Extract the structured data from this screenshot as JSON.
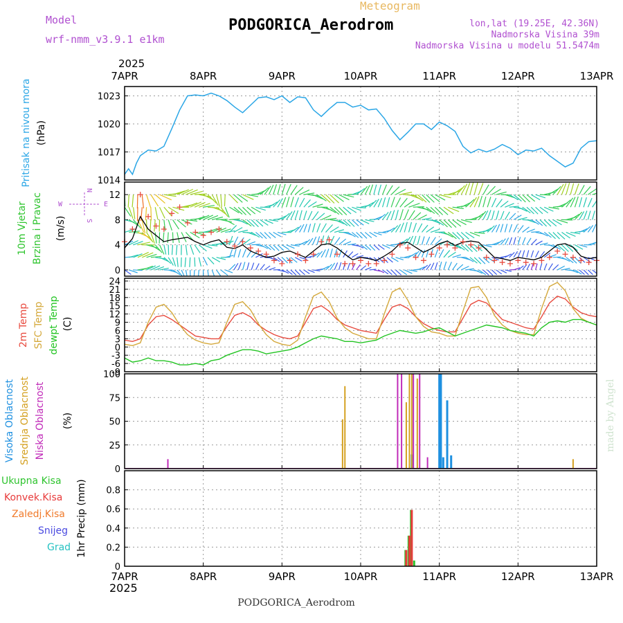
{
  "header": {
    "model_label": "Model",
    "model_name": "wrf-nmm_v3.9.1 e1km",
    "subtitle": "Meteogram",
    "station": "PODGORICA_Aerodrom",
    "coords": "lon,lat (19.25E, 42.36N)",
    "elevation": "Nadmorska Visina 39m",
    "model_elevation": "Nadmorska Visina u modelu 51.5474m",
    "footer_station": "PODGORICA_Aerodrom",
    "credit": "made by Angel"
  },
  "colors": {
    "pressure": "#2aa6e6",
    "temp2m": "#e84a3e",
    "sfc": "#d4a83a",
    "dewpt": "#22c422",
    "high_cloud": "#1e90e0",
    "mid_cloud": "#d4a020",
    "low_cloud": "#c02ab8",
    "total_precip": "#2ec42e",
    "conv_precip": "#e83a3a",
    "frz_precip": "#f07a2a",
    "snow": "#4a4ae0",
    "graupel": "#26c2c2",
    "purple_text": "#b050d0",
    "orange_text": "#e8b860"
  },
  "chart_data": [
    {
      "type": "line",
      "panel": "pressure",
      "ylabel_lines": [
        "Pritisak na nivou mora",
        "(hPa)"
      ],
      "x_tick_labels": [
        "7APR",
        "8APR",
        "9APR",
        "10APR",
        "11APR",
        "12APR",
        "13APR"
      ],
      "x_year": "2025",
      "ylim": [
        1014,
        1024
      ],
      "yticks": [
        1014,
        1017,
        1020,
        1023
      ],
      "grid": true,
      "x_days": [
        0,
        0.05,
        0.1,
        0.15,
        0.2,
        0.3,
        0.4,
        0.5,
        0.6,
        0.7,
        0.8,
        0.9,
        1.0,
        1.1,
        1.2,
        1.3,
        1.4,
        1.5,
        1.6,
        1.7,
        1.8,
        1.9,
        2.0,
        2.1,
        2.2,
        2.3,
        2.4,
        2.5,
        2.6,
        2.7,
        2.8,
        2.9,
        3.0,
        3.1,
        3.2,
        3.3,
        3.4,
        3.5,
        3.6,
        3.7,
        3.8,
        3.9,
        4.0,
        4.1,
        4.2,
        4.3,
        4.4,
        4.5,
        4.6,
        4.7,
        4.8,
        4.9,
        5.0,
        5.1,
        5.2,
        5.3,
        5.4,
        5.5,
        5.6,
        5.7,
        5.8,
        5.9,
        6.0
      ],
      "values": [
        1014.6,
        1015.2,
        1014.6,
        1015.8,
        1016.6,
        1017.2,
        1017.1,
        1017.6,
        1019.5,
        1021.5,
        1023.0,
        1023.1,
        1023.0,
        1023.3,
        1023.0,
        1022.5,
        1021.8,
        1021.2,
        1022.0,
        1022.8,
        1022.9,
        1022.6,
        1023.0,
        1022.3,
        1022.9,
        1022.8,
        1021.5,
        1020.8,
        1021.6,
        1022.3,
        1022.3,
        1021.8,
        1022.0,
        1021.5,
        1021.6,
        1020.6,
        1019.3,
        1018.3,
        1019.1,
        1020.0,
        1020.0,
        1019.4,
        1020.2,
        1019.8,
        1019.2,
        1017.6,
        1016.9,
        1017.3,
        1017.0,
        1017.3,
        1017.8,
        1017.4,
        1016.7,
        1017.2,
        1017.1,
        1017.4,
        1016.6,
        1016.0,
        1015.4,
        1015.8,
        1017.4,
        1018.1,
        1018.2
      ]
    },
    {
      "type": "line",
      "panel": "wind",
      "ylabel_lines": [
        "10m Vjetar",
        "Brzina i Pravac",
        "(m/s)"
      ],
      "compass_labels": [
        "W",
        "E",
        "N",
        "S"
      ],
      "ylim": [
        -1,
        14
      ],
      "yticks": [
        0,
        4,
        8,
        12
      ],
      "grid": true,
      "x_days": [
        0,
        0.1,
        0.2,
        0.3,
        0.4,
        0.5,
        0.6,
        0.7,
        0.8,
        0.9,
        1.0,
        1.1,
        1.2,
        1.3,
        1.4,
        1.5,
        1.6,
        1.7,
        1.8,
        1.9,
        2.0,
        2.1,
        2.2,
        2.3,
        2.4,
        2.5,
        2.6,
        2.7,
        2.8,
        2.9,
        3.0,
        3.1,
        3.2,
        3.3,
        3.4,
        3.5,
        3.6,
        3.7,
        3.8,
        3.9,
        4.0,
        4.1,
        4.2,
        4.3,
        4.4,
        4.5,
        4.6,
        4.7,
        4.8,
        4.9,
        5.0,
        5.1,
        5.2,
        5.3,
        5.4,
        5.5,
        5.6,
        5.7,
        5.8,
        5.9,
        6.0
      ],
      "series": [
        {
          "role": "speed",
          "values": [
            3.5,
            5.0,
            8.5,
            6.5,
            5.5,
            4.5,
            4.8,
            5.0,
            5.2,
            4.5,
            4.0,
            4.5,
            4.8,
            3.6,
            3.4,
            4.0,
            3.0,
            2.5,
            2.0,
            2.2,
            2.8,
            3.0,
            2.5,
            2.0,
            3.0,
            4.0,
            4.2,
            3.5,
            2.5,
            1.6,
            2.0,
            1.8,
            1.5,
            2.2,
            3.0,
            4.2,
            4.4,
            3.6,
            2.8,
            3.4,
            4.2,
            4.6,
            3.9,
            4.4,
            4.6,
            4.4,
            3.2,
            2.0,
            1.8,
            1.5,
            2.0,
            1.8,
            1.6,
            2.0,
            3.0,
            4.0,
            4.2,
            3.6,
            2.2,
            1.8,
            2.0
          ]
        },
        {
          "role": "gust",
          "values": [
            4.5,
            6.5,
            12.0,
            8.5,
            7.0,
            6.5,
            9.0,
            10.0,
            7.5,
            6.0,
            5.5,
            6.0,
            6.5,
            4.5,
            3.8,
            4.5,
            3.5,
            3.0,
            2.5,
            1.5,
            1.0,
            1.5,
            2.5,
            1.5,
            2.5,
            4.5,
            4.8,
            2.5,
            1.0,
            1.0,
            1.5,
            1.0,
            1.0,
            1.5,
            2.5,
            4.0,
            3.5,
            2.0,
            1.5,
            2.5,
            3.5,
            4.0,
            3.5,
            4.5,
            4.0,
            3.5,
            2.0,
            1.5,
            1.2,
            1.0,
            1.5,
            1.2,
            1.0,
            1.5,
            2.0,
            3.0,
            2.5,
            2.0,
            1.5,
            1.2,
            1.5
          ]
        }
      ]
    },
    {
      "type": "line",
      "panel": "temperature",
      "ylabel_lines": [
        "2m Temp",
        "SFC Temp",
        "dewpt Temp",
        "(C)"
      ],
      "ylim": [
        -9,
        25
      ],
      "yticks": [
        -9,
        -6,
        -3,
        0,
        3,
        6,
        9,
        12,
        15,
        18,
        21,
        24
      ],
      "grid": true,
      "x_days": [
        0,
        0.1,
        0.2,
        0.3,
        0.4,
        0.5,
        0.6,
        0.7,
        0.8,
        0.9,
        1.0,
        1.1,
        1.2,
        1.3,
        1.4,
        1.5,
        1.6,
        1.7,
        1.8,
        1.9,
        2.0,
        2.1,
        2.2,
        2.3,
        2.4,
        2.5,
        2.6,
        2.7,
        2.8,
        2.9,
        3.0,
        3.1,
        3.2,
        3.3,
        3.4,
        3.5,
        3.6,
        3.7,
        3.8,
        3.9,
        4.0,
        4.1,
        4.2,
        4.3,
        4.4,
        4.5,
        4.6,
        4.7,
        4.8,
        4.9,
        5.0,
        5.1,
        5.2,
        5.3,
        5.4,
        5.5,
        5.6,
        5.7,
        5.8,
        5.9,
        6.0
      ],
      "series": [
        {
          "name": "2m Temp",
          "values": [
            2.5,
            2.0,
            3.0,
            8.0,
            11.0,
            11.5,
            10.0,
            8.0,
            6.0,
            4.0,
            3.5,
            3.0,
            3.0,
            7.5,
            11.5,
            12.5,
            11.0,
            8.0,
            6.0,
            4.5,
            3.5,
            3.0,
            4.0,
            9.0,
            14.0,
            15.0,
            13.0,
            10.0,
            8.0,
            7.0,
            6.0,
            5.5,
            5.0,
            10.0,
            14.5,
            15.5,
            14.0,
            11.0,
            8.5,
            7.0,
            6.0,
            5.5,
            5.5,
            10.5,
            15.5,
            17.0,
            16.0,
            13.0,
            10.0,
            9.0,
            8.0,
            7.0,
            6.5,
            11.0,
            16.0,
            18.5,
            17.5,
            14.5,
            12.5,
            11.5,
            11.0
          ]
        },
        {
          "name": "SFC Temp",
          "values": [
            1.0,
            0.5,
            1.5,
            9.0,
            14.5,
            15.5,
            12.5,
            8.0,
            4.5,
            2.5,
            1.5,
            1.0,
            1.5,
            9.0,
            15.5,
            16.5,
            13.5,
            8.5,
            4.5,
            2.0,
            1.0,
            0.5,
            2.5,
            11.0,
            18.5,
            20.0,
            16.5,
            10.5,
            7.0,
            5.0,
            4.0,
            3.0,
            3.0,
            12.0,
            20.0,
            21.5,
            17.0,
            11.0,
            7.5,
            5.5,
            5.0,
            4.0,
            4.0,
            13.0,
            21.5,
            22.0,
            18.0,
            11.5,
            8.0,
            6.0,
            5.0,
            4.5,
            4.5,
            14.0,
            22.0,
            23.5,
            20.5,
            14.0,
            10.5,
            9.0,
            8.0
          ]
        },
        {
          "name": "dewpt Temp",
          "values": [
            -4.0,
            -5.5,
            -5.0,
            -4.0,
            -5.0,
            -5.0,
            -5.5,
            -6.5,
            -6.5,
            -6.0,
            -6.5,
            -5.0,
            -4.5,
            -3.0,
            -2.0,
            -1.0,
            -1.0,
            -1.5,
            -2.5,
            -2.0,
            -1.5,
            -1.0,
            0.0,
            1.5,
            3.0,
            4.0,
            3.5,
            3.0,
            2.0,
            2.0,
            1.5,
            2.0,
            2.5,
            4.0,
            5.0,
            6.0,
            5.5,
            5.0,
            5.5,
            6.5,
            7.0,
            5.5,
            4.0,
            5.0,
            6.0,
            7.0,
            8.0,
            7.5,
            7.0,
            6.0,
            5.5,
            5.0,
            4.0,
            7.0,
            9.0,
            9.5,
            9.0,
            10.0,
            10.0,
            9.0,
            8.0
          ]
        }
      ]
    },
    {
      "type": "bar",
      "panel": "clouds",
      "ylabel_lines": [
        "Visoka Oblacnost",
        "Srednja Oblacnost",
        "Niska Oblacnost",
        "(%)"
      ],
      "ylim": [
        0,
        100
      ],
      "yticks": [
        0,
        25,
        50,
        75,
        100
      ],
      "grid": true,
      "series": [
        {
          "name": "Visoka Oblacnost",
          "x_days": [
            3.65,
            4.0,
            4.02,
            4.05,
            4.1,
            4.15
          ],
          "values": [
            15,
            100,
            100,
            12,
            72,
            14
          ]
        },
        {
          "name": "Srednja Oblacnost",
          "x_days": [
            2.77,
            2.8,
            3.58,
            3.62,
            3.65,
            3.72,
            5.7
          ],
          "values": [
            52,
            87,
            70,
            100,
            100,
            95,
            10
          ]
        },
        {
          "name": "Niska Oblacnost",
          "x_days": [
            0.55,
            3.47,
            3.52,
            3.67,
            3.75,
            3.85
          ],
          "values": [
            10,
            100,
            100,
            100,
            100,
            12
          ]
        }
      ]
    },
    {
      "type": "bar",
      "panel": "precipitation",
      "ylabel_lines": [
        "1hr Precip (mm)"
      ],
      "legend": [
        "Ukupna Kisa",
        "Konvek.Kisa",
        "Zaledj.Kisa",
        "Snijeg",
        "Grad"
      ],
      "ylim": [
        0,
        1
      ],
      "yticks": [
        0,
        0.2,
        0.4,
        0.6,
        0.8
      ],
      "ytick_labels": [
        "0",
        "0.2",
        "0.4",
        "0.6",
        "0.8"
      ],
      "grid": true,
      "series": [
        {
          "name": "Ukupna Kisa",
          "x_days": [
            3.57,
            3.61,
            3.64,
            3.68
          ],
          "values": [
            0.17,
            0.32,
            0.59,
            0.06
          ]
        },
        {
          "name": "Konvek.Kisa",
          "x_days": [
            3.58,
            3.62,
            3.65
          ],
          "values": [
            0.17,
            0.32,
            0.59
          ]
        }
      ]
    }
  ]
}
